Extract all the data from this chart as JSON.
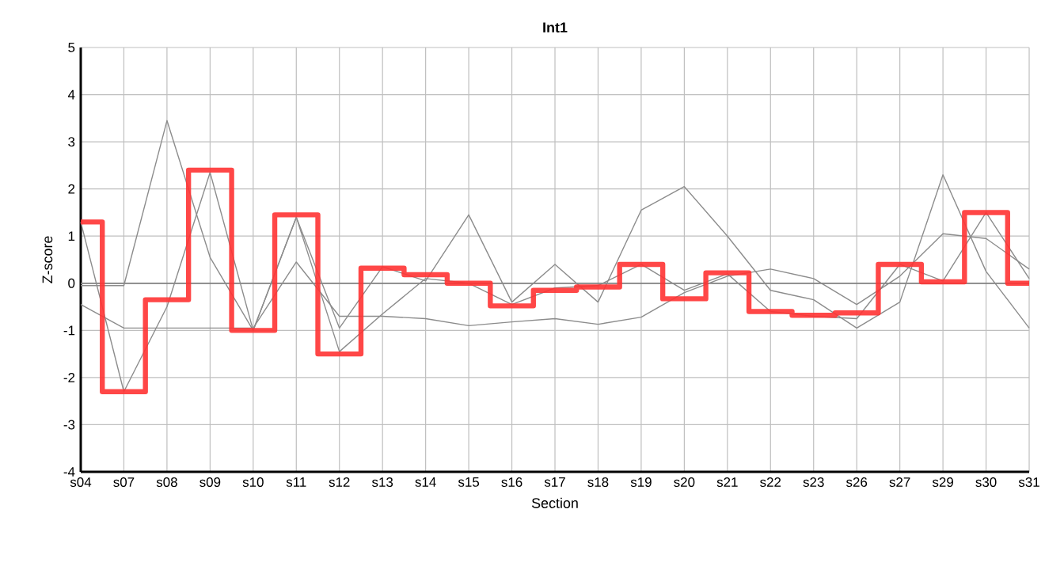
{
  "chart_data": {
    "type": "line",
    "title": "Int1",
    "xlabel": "Section",
    "ylabel": "Z-score",
    "categories": [
      "s04",
      "s07",
      "s08",
      "s09",
      "s10",
      "s11",
      "s12",
      "s13",
      "s14",
      "s15",
      "s16",
      "s17",
      "s18",
      "s19",
      "s20",
      "s21",
      "s22",
      "s23",
      "s26",
      "s27",
      "s29",
      "s30",
      "s31"
    ],
    "ylim": [
      -4,
      5
    ],
    "yticks": [
      -4,
      -3,
      -2,
      -1,
      0,
      1,
      2,
      3,
      4,
      5
    ],
    "grid": true,
    "marker": "none",
    "ref_lines": [
      {
        "axis": "y",
        "value": 0,
        "color": "#808080"
      }
    ],
    "series": [
      {
        "color": "#8c8c8c",
        "values": [
          -0.05,
          -0.05,
          3.45,
          0.55,
          -1.0,
          1.4,
          -0.95,
          0.35,
          0.05,
          1.45,
          -0.4,
          0.4,
          -0.4,
          1.55,
          2.05,
          1.0,
          -0.15,
          -0.35,
          -0.95,
          -0.4,
          2.3,
          0.25,
          -0.95
        ]
      },
      {
        "color": "#8c8c8c",
        "values": [
          1.3,
          -2.3,
          -0.5,
          2.35,
          -1.0,
          1.4,
          -1.45,
          -0.65,
          0.1,
          0.0,
          -0.45,
          -0.1,
          -0.05,
          0.4,
          -0.15,
          0.2,
          -0.6,
          -0.7,
          -0.75,
          0.4,
          0.05,
          1.5,
          0.1
        ]
      },
      {
        "color": "#8c8c8c",
        "values": [
          -0.45,
          -0.95,
          -0.95,
          -0.95,
          -0.95,
          0.45,
          -0.7,
          -0.7,
          -0.75,
          -0.9,
          -0.82,
          -0.75,
          -0.87,
          -0.72,
          -0.2,
          0.15,
          0.3,
          0.1,
          -0.45,
          0.15,
          1.05,
          0.95,
          0.3
        ]
      },
      {
        "type": "step",
        "color": "#ff3333",
        "values": [
          1.3,
          -2.3,
          -0.35,
          2.4,
          -1.0,
          1.45,
          -1.5,
          0.32,
          0.18,
          0.0,
          -0.48,
          -0.15,
          -0.08,
          0.4,
          -0.33,
          0.22,
          -0.6,
          -0.68,
          -0.63,
          0.4,
          0.03,
          1.5,
          0.0
        ]
      }
    ]
  }
}
